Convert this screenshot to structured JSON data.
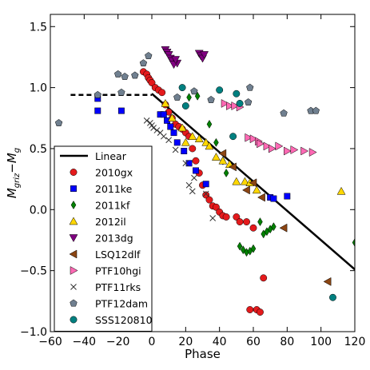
{
  "chart_data": {
    "type": "scatter",
    "title": "",
    "xlabel": "Phase",
    "ylabel": "M_griz − M_g",
    "ylabel_main": "M",
    "ylabel_sub": "griz",
    "ylabel_tail": "−M",
    "ylabel_sub2": "g",
    "xlim": [
      -60,
      120
    ],
    "ylim": [
      -1.0,
      1.6
    ],
    "xticks": [
      -60,
      -40,
      -20,
      0,
      20,
      40,
      60,
      80,
      100,
      120
    ],
    "yticks": [
      -1.0,
      -0.5,
      0.0,
      0.5,
      1.0,
      1.5
    ],
    "xtick_labels": [
      "−60",
      "−40",
      "−20",
      "0",
      "20",
      "40",
      "60",
      "80",
      "100",
      "120"
    ],
    "ytick_labels": [
      "−1.0",
      "−0.5",
      "0.0",
      "0.5",
      "1.0",
      "1.5"
    ],
    "grid": false,
    "legend_position": "lower-left",
    "lines": [
      {
        "name": "Linear",
        "style": "solid",
        "color": "#000000",
        "points": [
          [
            0,
            0.95
          ],
          [
            120,
            -0.49
          ]
        ]
      },
      {
        "name": "",
        "style": "dashed",
        "color": "#000000",
        "points": [
          [
            -48,
            0.94
          ],
          [
            0,
            0.94
          ]
        ]
      }
    ],
    "series": [
      {
        "name": "2010gx",
        "marker": "circle",
        "color": "#e41a1c",
        "points": [
          [
            -5,
            1.13
          ],
          [
            -3,
            1.11
          ],
          [
            -2,
            1.08
          ],
          [
            -1,
            1.06
          ],
          [
            0,
            1.04
          ],
          [
            2,
            1.0
          ],
          [
            4,
            0.98
          ],
          [
            6,
            0.96
          ],
          [
            8,
            0.86
          ],
          [
            10,
            0.8
          ],
          [
            12,
            0.75
          ],
          [
            14,
            0.7
          ],
          [
            16,
            0.68
          ],
          [
            18,
            0.66
          ],
          [
            20,
            0.63
          ],
          [
            22,
            0.6
          ],
          [
            24,
            0.5
          ],
          [
            26,
            0.4
          ],
          [
            28,
            0.3
          ],
          [
            30,
            0.2
          ],
          [
            32,
            0.12
          ],
          [
            34,
            0.08
          ],
          [
            36,
            0.03
          ],
          [
            38,
            0.02
          ],
          [
            40,
            -0.02
          ],
          [
            42,
            -0.05
          ],
          [
            44,
            -0.06
          ],
          [
            50,
            -0.06
          ],
          [
            52,
            -0.1
          ],
          [
            56,
            -0.1
          ],
          [
            60,
            -0.15
          ],
          [
            58,
            -0.82
          ],
          [
            62,
            -0.82
          ],
          [
            64,
            -0.84
          ],
          [
            66,
            -0.56
          ]
        ]
      },
      {
        "name": "2011ke",
        "marker": "square",
        "color": "#0000ff",
        "points": [
          [
            -32,
            0.91
          ],
          [
            -32,
            0.81
          ],
          [
            -18,
            0.81
          ],
          [
            5,
            0.78
          ],
          [
            7,
            0.78
          ],
          [
            9,
            0.73
          ],
          [
            11,
            0.68
          ],
          [
            13,
            0.63
          ],
          [
            15,
            0.55
          ],
          [
            19,
            0.48
          ],
          [
            22,
            0.38
          ],
          [
            26,
            0.32
          ],
          [
            32,
            0.21
          ],
          [
            70,
            0.1
          ],
          [
            72,
            0.09
          ],
          [
            80,
            0.11
          ]
        ]
      },
      {
        "name": "2011kf",
        "marker": "diamond",
        "color": "#008000",
        "points": [
          [
            22,
            0.92
          ],
          [
            27,
            0.93
          ],
          [
            34,
            0.7
          ],
          [
            38,
            0.55
          ],
          [
            42,
            0.4
          ],
          [
            44,
            0.3
          ],
          [
            52,
            -0.3
          ],
          [
            54,
            -0.33
          ],
          [
            56,
            -0.35
          ],
          [
            58,
            -0.34
          ],
          [
            60,
            -0.32
          ],
          [
            64,
            -0.1
          ],
          [
            66,
            -0.2
          ],
          [
            68,
            -0.18
          ],
          [
            70,
            -0.16
          ],
          [
            72,
            -0.14
          ],
          [
            120,
            -0.27
          ]
        ]
      },
      {
        "name": "2012il",
        "marker": "triangle-up",
        "color": "#ffd700",
        "points": [
          [
            8,
            0.87
          ],
          [
            12,
            0.75
          ],
          [
            18,
            0.67
          ],
          [
            20,
            0.55
          ],
          [
            24,
            0.6
          ],
          [
            28,
            0.58
          ],
          [
            32,
            0.55
          ],
          [
            34,
            0.52
          ],
          [
            38,
            0.43
          ],
          [
            42,
            0.4
          ],
          [
            46,
            0.37
          ],
          [
            50,
            0.23
          ],
          [
            55,
            0.23
          ],
          [
            58,
            0.22
          ],
          [
            62,
            0.16
          ],
          [
            112,
            0.15
          ]
        ]
      },
      {
        "name": "2013dg",
        "marker": "triangle-down",
        "color": "#800080",
        "points": [
          [
            8,
            1.31
          ],
          [
            9,
            1.29
          ],
          [
            10,
            1.27
          ],
          [
            11,
            1.24
          ],
          [
            12,
            1.22
          ],
          [
            15,
            1.2
          ],
          [
            28,
            1.28
          ],
          [
            29,
            1.26
          ],
          [
            30,
            1.24
          ],
          [
            31,
            1.27
          ],
          [
            13,
            1.19
          ],
          [
            14,
            1.23
          ]
        ]
      },
      {
        "name": "LSQ12dlf",
        "marker": "triangle-left",
        "color": "#8b4513",
        "points": [
          [
            42,
            0.46
          ],
          [
            48,
            0.35
          ],
          [
            56,
            0.16
          ],
          [
            60,
            0.22
          ],
          [
            65,
            0.1
          ],
          [
            78,
            -0.15
          ],
          [
            104,
            -0.59
          ]
        ]
      },
      {
        "name": "PTF10hgi",
        "marker": "triangle-right",
        "color": "#ff69b4",
        "points": [
          [
            43,
            0.87
          ],
          [
            46,
            0.85
          ],
          [
            49,
            0.85
          ],
          [
            52,
            0.84
          ],
          [
            57,
            0.59
          ],
          [
            60,
            0.58
          ],
          [
            63,
            0.56
          ],
          [
            64,
            0.54
          ],
          [
            68,
            0.52
          ],
          [
            71,
            0.5
          ],
          [
            75,
            0.52
          ],
          [
            80,
            0.48
          ],
          [
            84,
            0.49
          ],
          [
            90,
            0.48
          ],
          [
            95,
            0.47
          ]
        ]
      },
      {
        "name": "PTF11rks",
        "marker": "x",
        "color": "#333333",
        "points": [
          [
            -3,
            0.73
          ],
          [
            -1,
            0.71
          ],
          [
            0,
            0.69
          ],
          [
            1,
            0.67
          ],
          [
            3,
            0.65
          ],
          [
            5,
            0.63
          ],
          [
            7,
            0.6
          ],
          [
            10,
            0.57
          ],
          [
            14,
            0.49
          ],
          [
            20,
            0.38
          ],
          [
            22,
            0.2
          ],
          [
            24,
            0.15
          ],
          [
            32,
            0.13
          ],
          [
            36,
            -0.07
          ],
          [
            25,
            0.26
          ]
        ]
      },
      {
        "name": "PTF12dam",
        "marker": "pentagon",
        "color": "#708090",
        "points": [
          [
            -55,
            0.71
          ],
          [
            -32,
            0.94
          ],
          [
            -20,
            1.11
          ],
          [
            -18,
            0.96
          ],
          [
            -16,
            1.09
          ],
          [
            -10,
            1.1
          ],
          [
            -5,
            1.2
          ],
          [
            -2,
            1.26
          ],
          [
            15,
            0.92
          ],
          [
            25,
            0.97
          ],
          [
            35,
            0.9
          ],
          [
            57,
            0.88
          ],
          [
            78,
            0.79
          ],
          [
            94,
            0.81
          ],
          [
            97,
            0.81
          ],
          [
            58,
            1.0
          ]
        ]
      },
      {
        "name": "SSS120810",
        "marker": "circle",
        "color": "#008080",
        "points": [
          [
            18,
            1.0
          ],
          [
            20,
            0.85
          ],
          [
            40,
            0.98
          ],
          [
            50,
            0.95
          ],
          [
            52,
            0.87
          ],
          [
            48,
            0.6
          ],
          [
            107,
            -0.72
          ]
        ]
      }
    ]
  }
}
